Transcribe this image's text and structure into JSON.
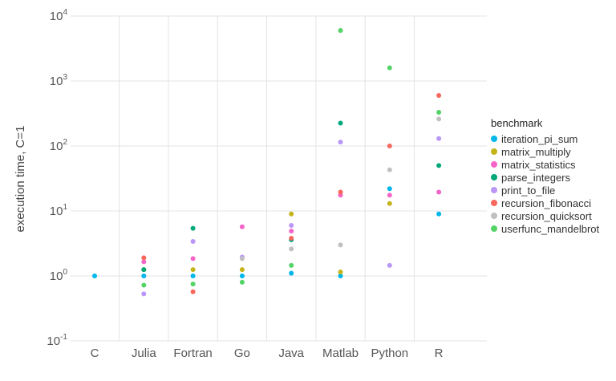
{
  "chart_data": {
    "type": "scatter",
    "ylabel": "execution time, C=1",
    "xlabel": "",
    "y_scale": "log",
    "ylim": [
      0.1,
      10000
    ],
    "y_ticks": [
      {
        "base": "10",
        "exp": "-1"
      },
      {
        "base": "10",
        "exp": "0"
      },
      {
        "base": "10",
        "exp": "1"
      },
      {
        "base": "10",
        "exp": "2"
      },
      {
        "base": "10",
        "exp": "3"
      },
      {
        "base": "10",
        "exp": "4"
      }
    ],
    "categories": [
      "C",
      "Julia",
      "Fortran",
      "Go",
      "Java",
      "Matlab",
      "Python",
      "R"
    ],
    "grid": true,
    "legend_title": "benchmark",
    "legend_position": "right",
    "series": [
      {
        "name": "iteration_pi_sum",
        "color": "#00b6eb",
        "values": [
          1.0,
          1.0,
          1.0,
          1.0,
          1.1,
          1.0,
          22,
          9
        ]
      },
      {
        "name": "matrix_multiply",
        "color": "#c4b319",
        "values": [
          null,
          1.25,
          1.25,
          1.25,
          9,
          1.15,
          13,
          null
        ]
      },
      {
        "name": "matrix_statistics",
        "color": "#f564c8",
        "values": [
          null,
          1.65,
          1.85,
          5.7,
          4.9,
          17.5,
          17.5,
          19.5
        ]
      },
      {
        "name": "parse_integers",
        "color": "#00a87a",
        "values": [
          null,
          1.25,
          5.4,
          null,
          3.6,
          225,
          null,
          50
        ]
      },
      {
        "name": "print_to_file",
        "color": "#b996f7",
        "values": [
          null,
          0.53,
          3.4,
          1.95,
          6,
          115,
          1.45,
          130
        ]
      },
      {
        "name": "recursion_fibonacci",
        "color": "#f7675d",
        "values": [
          null,
          1.9,
          0.57,
          null,
          3.8,
          19.5,
          100,
          600
        ]
      },
      {
        "name": "recursion_quicksort",
        "color": "#c0c0c0",
        "values": [
          null,
          null,
          null,
          1.85,
          2.6,
          3.0,
          43,
          260
        ]
      },
      {
        "name": "userfunc_mandelbrot",
        "color": "#53d467",
        "values": [
          null,
          0.72,
          0.75,
          0.8,
          1.45,
          6000,
          1600,
          330
        ]
      }
    ]
  }
}
